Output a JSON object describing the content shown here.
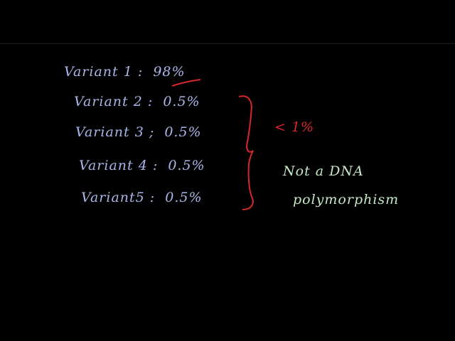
{
  "variants": [
    {
      "label": "Variant 1 :",
      "value": "98%"
    },
    {
      "label": "Variant 2 :",
      "value": "0.5%"
    },
    {
      "label": "Variant 3 ;",
      "value": "0.5%"
    },
    {
      "label": "Variant 4 :",
      "value": "0.5%"
    },
    {
      "label": "Variant5 :",
      "value": "0.5%"
    }
  ],
  "bracket_note": "< 1%",
  "conclusion": {
    "line1": "Not a DNA",
    "line2": "polymorphism"
  },
  "colors": {
    "background": "#000000",
    "variants": "#a9b6e8",
    "annotation": "#d8262c",
    "conclusion": "#c3e9c4"
  }
}
